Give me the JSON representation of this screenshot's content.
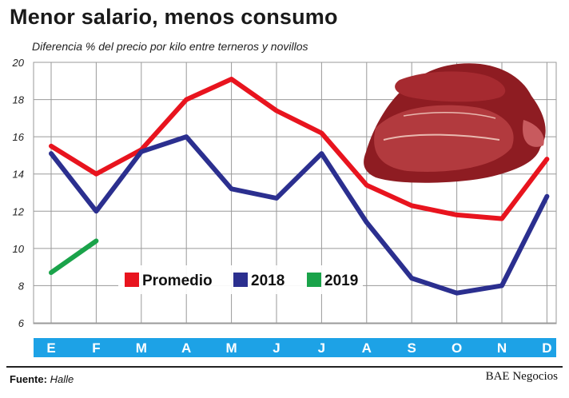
{
  "title": "Menor salario, menos consumo",
  "subtitle": "Diferencia % del precio por kilo entre terneros y novillos",
  "source_label": "Fuente:",
  "source_value": "Halle",
  "brand": "BAE Negocios",
  "colors": {
    "promedio": "#e8141e",
    "y2018": "#2b2f8f",
    "y2019": "#1aa34a",
    "month_band": "#1da2e6",
    "grid": "#9a9a9a"
  },
  "chart_data": {
    "type": "line",
    "title": "Menor salario, menos consumo",
    "subtitle": "Diferencia % del precio por kilo entre terneros y novillos",
    "categories": [
      "E",
      "F",
      "M",
      "A",
      "M",
      "J",
      "J",
      "A",
      "S",
      "O",
      "N",
      "D"
    ],
    "ylim": [
      6,
      20
    ],
    "yticks": [
      "20",
      "18",
      "16",
      "14",
      "12",
      "10",
      "8",
      "6"
    ],
    "ytick_values": [
      20,
      18,
      16,
      14,
      12,
      10,
      8,
      6
    ],
    "grid": true,
    "legend": "center-left",
    "series": [
      {
        "name": "Promedio",
        "color": "#e8141e",
        "values": [
          15.5,
          14.0,
          15.3,
          18.0,
          19.1,
          17.4,
          16.2,
          13.4,
          12.3,
          11.8,
          11.6,
          14.8
        ]
      },
      {
        "name": "2018",
        "color": "#2b2f8f",
        "values": [
          15.1,
          12.0,
          15.2,
          16.0,
          13.2,
          12.7,
          15.1,
          11.4,
          8.4,
          7.6,
          8.0,
          12.8
        ]
      },
      {
        "name": "2019",
        "color": "#1aa34a",
        "values": [
          8.7,
          10.4,
          null,
          null,
          null,
          null,
          null,
          null,
          null,
          null,
          null,
          null
        ]
      }
    ]
  }
}
